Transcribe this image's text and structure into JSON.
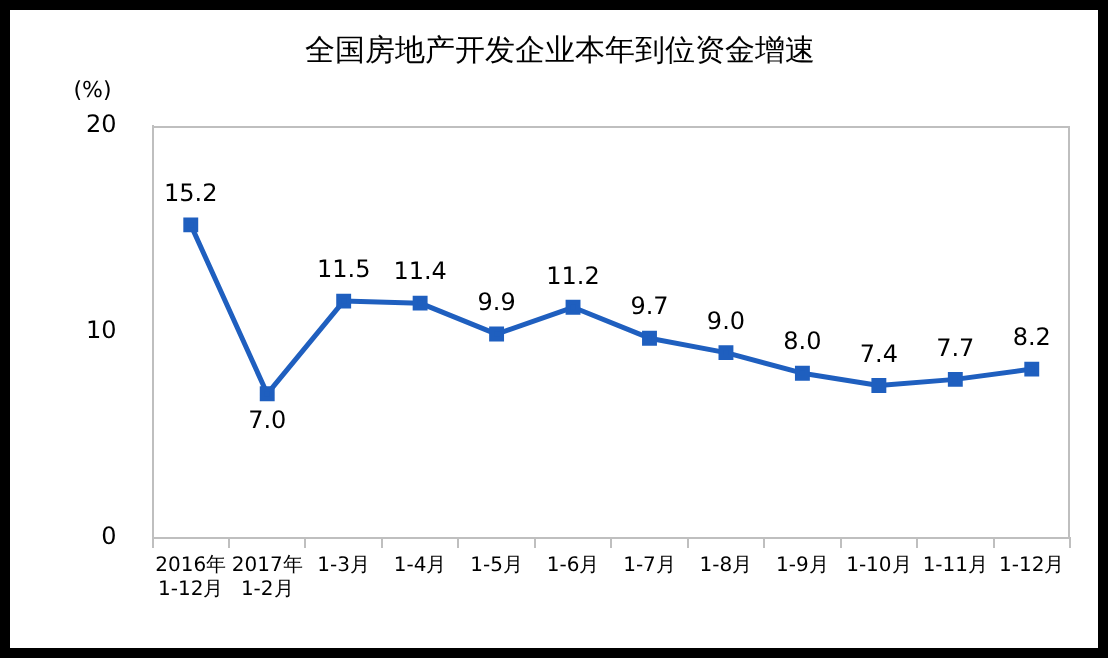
{
  "chart_data": {
    "type": "line",
    "title": "全国房地产开发企业本年到位资金增速",
    "ylabel": "(%)",
    "categories": [
      "2016年\n1-12月",
      "2017年\n1-2月",
      "1-3月",
      "1-4月",
      "1-5月",
      "1-6月",
      "1-7月",
      "1-8月",
      "1-9月",
      "1-10月",
      "1-11月",
      "1-12月"
    ],
    "series": [
      {
        "color": "#1f5fbf",
        "values": [
          15.2,
          7.0,
          11.5,
          11.4,
          9.9,
          11.2,
          9.7,
          9.0,
          8.0,
          7.4,
          7.7,
          8.2
        ],
        "value_labels": [
          "15.2",
          "7.0",
          "11.5",
          "11.4",
          "9.9",
          "11.2",
          "9.7",
          "9.0",
          "8.0",
          "7.4",
          "7.7",
          "8.2"
        ]
      }
    ],
    "ylim": [
      0,
      20
    ],
    "yticks": [
      0,
      10,
      20
    ],
    "grid": false,
    "legend": false,
    "marker": "square",
    "line_style": "solid"
  }
}
